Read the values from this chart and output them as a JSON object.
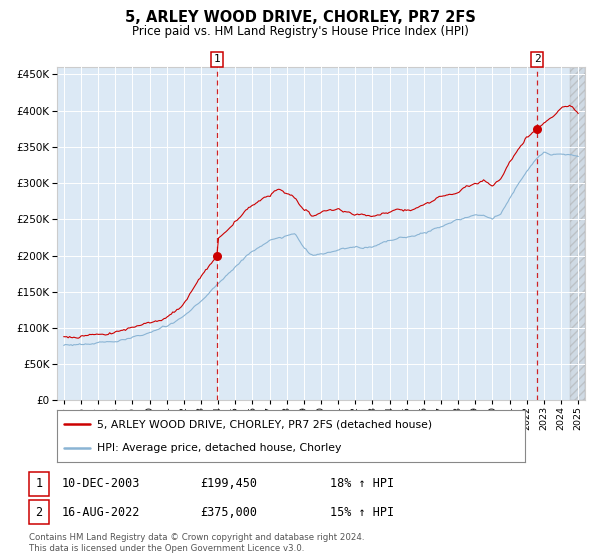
{
  "title": "5, ARLEY WOOD DRIVE, CHORLEY, PR7 2FS",
  "subtitle": "Price paid vs. HM Land Registry's House Price Index (HPI)",
  "legend_line1": "5, ARLEY WOOD DRIVE, CHORLEY, PR7 2FS (detached house)",
  "legend_line2": "HPI: Average price, detached house, Chorley",
  "footer": "Contains HM Land Registry data © Crown copyright and database right 2024.\nThis data is licensed under the Open Government Licence v3.0.",
  "sale1_date": "10-DEC-2003",
  "sale1_price": 199450,
  "sale1_label": "1",
  "sale1_hpi": "18% ↑ HPI",
  "sale2_date": "16-AUG-2022",
  "sale2_price": 375000,
  "sale2_label": "2",
  "sale2_hpi": "15% ↑ HPI",
  "ylim": [
    0,
    460000
  ],
  "yticks": [
    0,
    50000,
    100000,
    150000,
    200000,
    250000,
    300000,
    350000,
    400000,
    450000
  ],
  "background_color": "#dce9f5",
  "red_color": "#cc0000",
  "blue_color": "#8ab4d4",
  "grid_color": "#ffffff",
  "sale1_x": 2003.94,
  "sale2_x": 2022.62,
  "xmin": 1994.6,
  "xmax": 2025.4
}
